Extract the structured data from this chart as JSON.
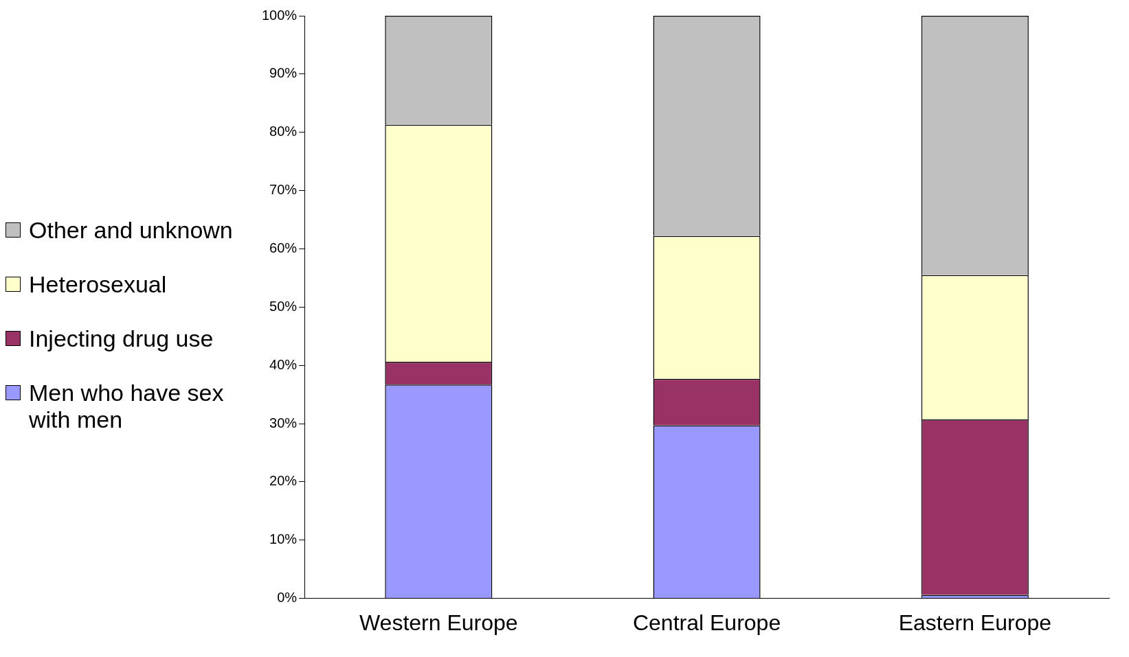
{
  "chart_data": {
    "type": "bar",
    "stacked": true,
    "categories": [
      "Western Europe",
      "Central Europe",
      "Eastern Europe"
    ],
    "series": [
      {
        "name": "Men who have sex with men",
        "color": "#9999ff",
        "values": [
          36.7,
          29.7,
          0.6
        ]
      },
      {
        "name": "Injecting drug use",
        "color": "#993366",
        "values": [
          3.9,
          8.0,
          30.1
        ]
      },
      {
        "name": "Heterosexual",
        "color": "#ffffcc",
        "values": [
          40.7,
          24.5,
          24.8
        ]
      },
      {
        "name": "Other and unknown",
        "color": "#c0c0c0",
        "values": [
          18.7,
          37.8,
          44.5
        ]
      }
    ],
    "ylim": [
      0,
      100
    ],
    "yticks": [
      {
        "value": 0,
        "label": "0%"
      },
      {
        "value": 10,
        "label": "10%"
      },
      {
        "value": 20,
        "label": "20%"
      },
      {
        "value": 30,
        "label": "30%"
      },
      {
        "value": 40,
        "label": "40%"
      },
      {
        "value": 50,
        "label": "50%"
      },
      {
        "value": 60,
        "label": "60%"
      },
      {
        "value": 70,
        "label": "70%"
      },
      {
        "value": 80,
        "label": "80%"
      },
      {
        "value": 90,
        "label": "90%"
      },
      {
        "value": 100,
        "label": "100%"
      }
    ],
    "grid": false,
    "legend": "left"
  }
}
